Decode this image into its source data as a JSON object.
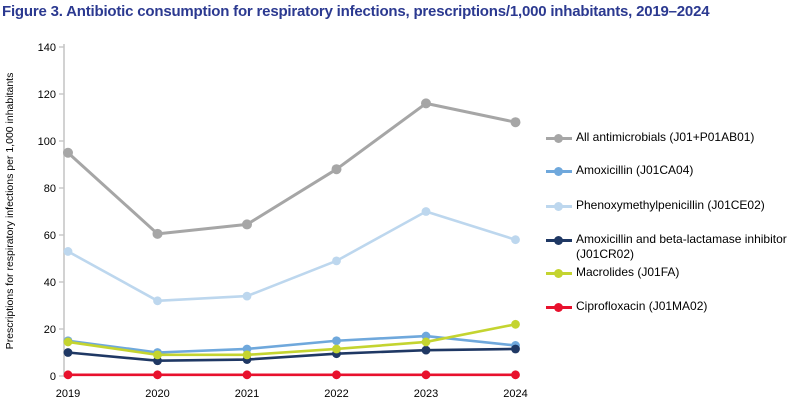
{
  "title": "Figure 3. Antibiotic consumption for respiratory infections, prescriptions/1,000 inhabitants, 2019–2024",
  "colors": {
    "title_text": "#2b3990",
    "axis": "#c6c6c6",
    "tick_text": "#000000"
  },
  "chart_data": {
    "type": "line",
    "title": "Figure 3. Antibiotic consumption for respiratory infections, prescriptions/1,000 inhabitants, 2019–2024",
    "xlabel": "",
    "ylabel": "Prescriptions for respiratory infections per 1,000 inhabitants",
    "categories": [
      "2019",
      "2020",
      "2021",
      "2022",
      "2023",
      "2024"
    ],
    "ylim": [
      0,
      140
    ],
    "ytick_step": 20,
    "grid": false,
    "legend_position": "right",
    "series": [
      {
        "name": "All antimicrobials (J01+P01AB01)",
        "color": "#a6a6a6",
        "values": [
          95,
          60.5,
          64.5,
          88,
          116,
          108
        ]
      },
      {
        "name": "Amoxicillin (J01CA04)",
        "color": "#6fa8dc",
        "values": [
          15,
          10,
          11.5,
          15,
          17,
          13
        ]
      },
      {
        "name": "Phenoxymethylpenicillin (J01CE02)",
        "color": "#bdd7ee",
        "values": [
          53,
          32,
          34,
          49,
          70,
          58
        ]
      },
      {
        "name": "Amoxicillin and beta-lactamase inhibitor\n(J01CR02)",
        "color": "#1f3864",
        "values": [
          10,
          6.5,
          7,
          9.5,
          11,
          11.5
        ]
      },
      {
        "name": "Macrolides (J01FA)",
        "color": "#c4d430",
        "values": [
          14.5,
          9,
          9,
          11.5,
          14.5,
          22
        ]
      },
      {
        "name": "Ciprofloxacin (J01MA02)",
        "color": "#e8112d",
        "values": [
          0.5,
          0.5,
          0.5,
          0.5,
          0.5,
          0.5
        ]
      }
    ]
  }
}
